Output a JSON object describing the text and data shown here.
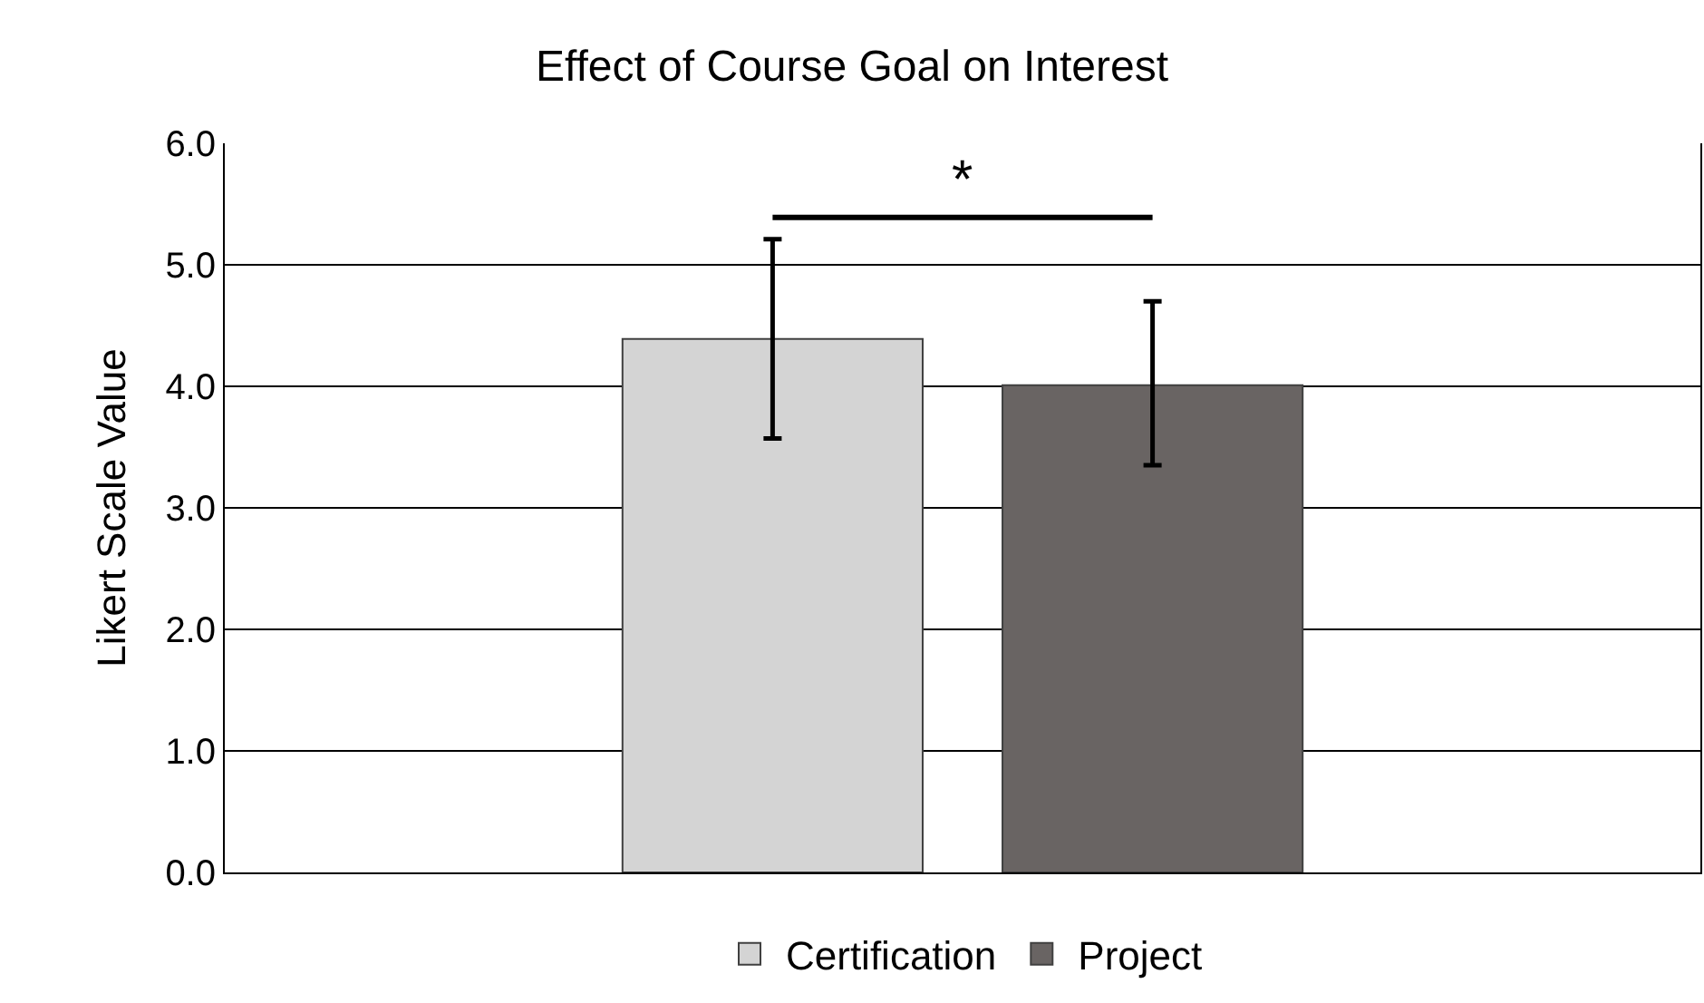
{
  "chart_data": {
    "type": "bar",
    "title": "Effect of Course Goal on Interest",
    "ylabel": "Likert Scale Value",
    "categories": [
      null
    ],
    "series": [
      {
        "name": "Certification",
        "color": "#d4d4d4",
        "values": [
          4.39
        ],
        "errors": [
          [
            3.57,
            5.21
          ]
        ]
      },
      {
        "name": "Project",
        "color": "#696463",
        "values": [
          4.01
        ],
        "errors": [
          [
            3.35,
            4.7
          ]
        ]
      }
    ],
    "ylim": [
      0,
      6
    ],
    "yticks": [
      {
        "value": 0,
        "label": "0.0"
      },
      {
        "value": 1,
        "label": "1.0"
      },
      {
        "value": 2,
        "label": "2.0"
      },
      {
        "value": 3,
        "label": "3.0"
      },
      {
        "value": 4,
        "label": "4.0"
      },
      {
        "value": 5,
        "label": "5.0"
      },
      {
        "value": 6,
        "label": "6.0"
      }
    ],
    "grid": "y",
    "legend": "bottom",
    "annotations": [
      "*"
    ]
  }
}
